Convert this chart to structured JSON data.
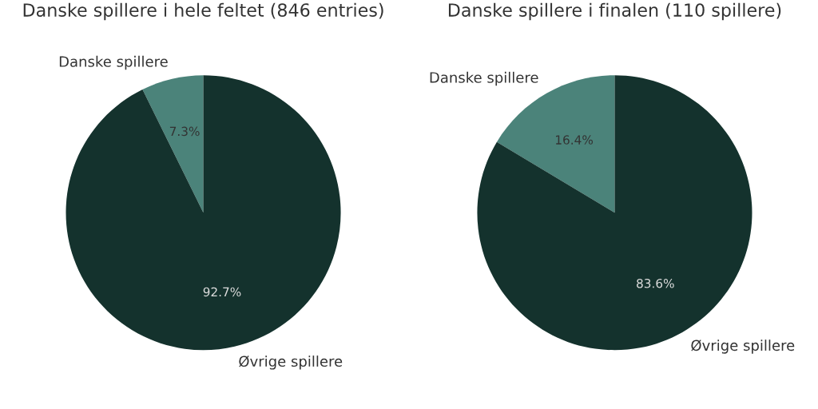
{
  "chart_data": [
    {
      "type": "pie",
      "title": "Danske spillere i hele feltet (846 entries)",
      "categories": [
        "Danske spillere",
        "Øvrige spillere"
      ],
      "values": [
        7.3,
        92.7
      ],
      "colors": [
        "#4b837a",
        "#14322d"
      ],
      "value_labels": [
        "7.3%",
        "92.7%"
      ]
    },
    {
      "type": "pie",
      "title": "Danske spillere i finalen (110 spillere)",
      "categories": [
        "Danske spillere",
        "Øvrige spillere"
      ],
      "values": [
        16.4,
        83.6
      ],
      "colors": [
        "#4b837a",
        "#14322d"
      ],
      "value_labels": [
        "16.4%",
        "83.6%"
      ]
    }
  ]
}
